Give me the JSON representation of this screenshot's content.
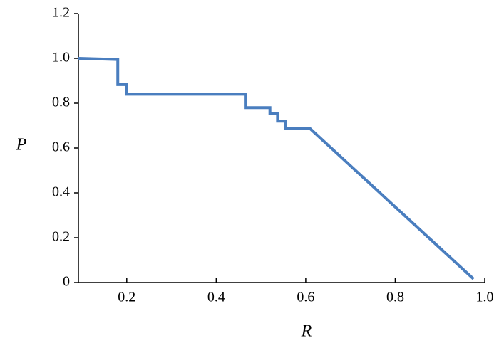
{
  "chart_data": {
    "type": "line",
    "x_label": "R",
    "y_label": "P",
    "x": [
      0.092,
      0.18,
      0.18,
      0.2,
      0.2,
      0.465,
      0.465,
      0.52,
      0.52,
      0.537,
      0.537,
      0.554,
      0.554,
      0.61,
      0.975
    ],
    "series": [
      {
        "color": "#4a7ebf",
        "values": [
          1.0,
          0.995,
          0.883,
          0.883,
          0.84,
          0.84,
          0.78,
          0.78,
          0.755,
          0.755,
          0.72,
          0.72,
          0.686,
          0.686,
          0.016
        ]
      }
    ],
    "xlim": [
      0.092,
      1.0
    ],
    "xticks": [
      0.2,
      0.4,
      0.6,
      0.8,
      {
        "value": 1,
        "label": "1.0"
      }
    ],
    "ylim": [
      0,
      1.2
    ],
    "yticks": [
      0,
      0.2,
      0.4,
      0.6,
      0.8,
      {
        "value": 1,
        "label": "1.0"
      },
      1.2
    ]
  }
}
